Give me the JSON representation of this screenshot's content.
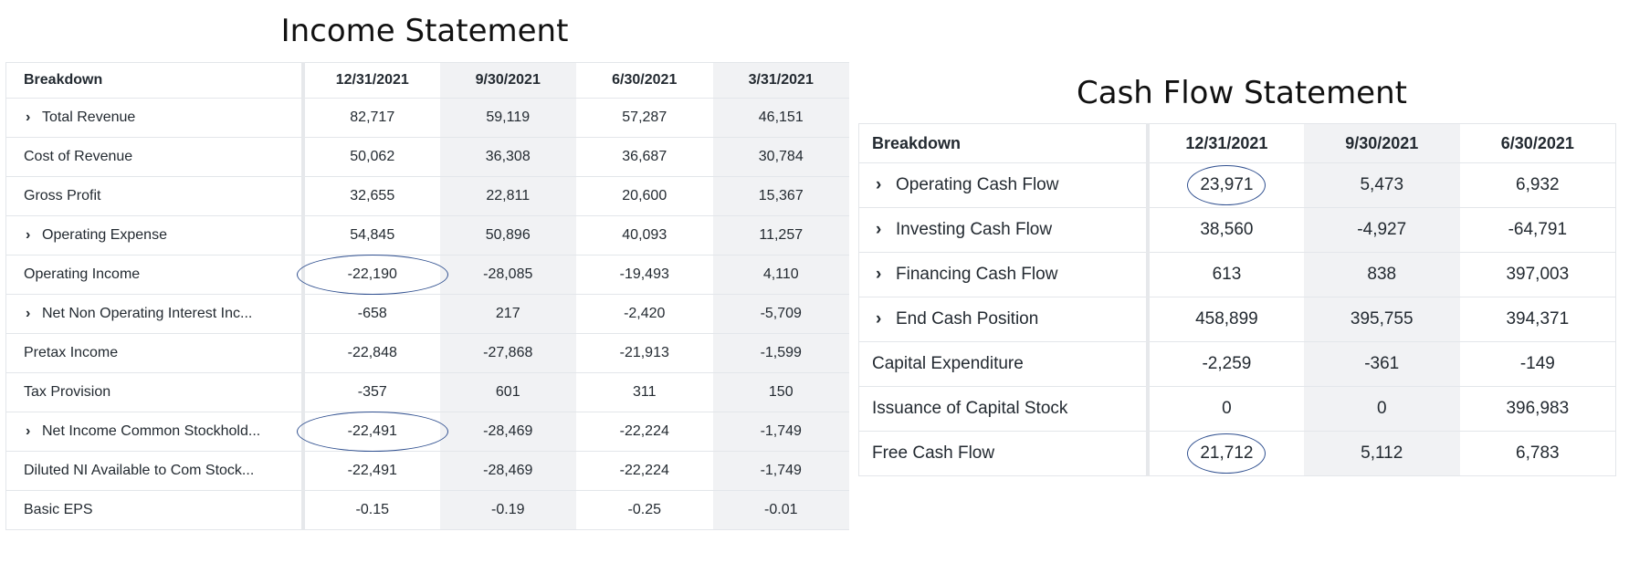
{
  "income": {
    "title": "Income Statement",
    "headers": [
      "Breakdown",
      "12/31/2021",
      "9/30/2021",
      "6/30/2021",
      "3/31/2021"
    ],
    "rows": [
      {
        "label": "Total Revenue",
        "expandable": true,
        "values": [
          "82,717",
          "59,119",
          "57,287",
          "46,151"
        ]
      },
      {
        "label": "Cost of Revenue",
        "expandable": false,
        "values": [
          "50,062",
          "36,308",
          "36,687",
          "30,784"
        ]
      },
      {
        "label": "Gross Profit",
        "expandable": false,
        "values": [
          "32,655",
          "22,811",
          "20,600",
          "15,367"
        ]
      },
      {
        "label": "Operating Expense",
        "expandable": true,
        "values": [
          "54,845",
          "50,896",
          "40,093",
          "11,257"
        ]
      },
      {
        "label": "Operating Income",
        "expandable": false,
        "values": [
          "-22,190",
          "-28,085",
          "-19,493",
          "4,110"
        ],
        "circled": 0
      },
      {
        "label": "Net Non Operating Interest Inc...",
        "expandable": true,
        "values": [
          "-658",
          "217",
          "-2,420",
          "-5,709"
        ]
      },
      {
        "label": "Pretax Income",
        "expandable": false,
        "values": [
          "-22,848",
          "-27,868",
          "-21,913",
          "-1,599"
        ]
      },
      {
        "label": "Tax Provision",
        "expandable": false,
        "values": [
          "-357",
          "601",
          "311",
          "150"
        ]
      },
      {
        "label": "Net Income Common Stockhold...",
        "expandable": true,
        "values": [
          "-22,491",
          "-28,469",
          "-22,224",
          "-1,749"
        ],
        "circled": 0
      },
      {
        "label": "Diluted NI Available to Com Stock...",
        "expandable": false,
        "values": [
          "-22,491",
          "-28,469",
          "-22,224",
          "-1,749"
        ]
      },
      {
        "label": "Basic EPS",
        "expandable": false,
        "values": [
          "-0.15",
          "-0.19",
          "-0.25",
          "-0.01"
        ]
      }
    ]
  },
  "cashflow": {
    "title": "Cash Flow Statement",
    "headers": [
      "Breakdown",
      "12/31/2021",
      "9/30/2021",
      "6/30/2021"
    ],
    "rows": [
      {
        "label": "Operating Cash Flow",
        "expandable": true,
        "values": [
          "23,971",
          "5,473",
          "6,932"
        ],
        "circled": 0
      },
      {
        "label": "Investing Cash Flow",
        "expandable": true,
        "values": [
          "38,560",
          "-4,927",
          "-64,791"
        ]
      },
      {
        "label": "Financing Cash Flow",
        "expandable": true,
        "values": [
          "613",
          "838",
          "397,003"
        ]
      },
      {
        "label": "End Cash Position",
        "expandable": true,
        "values": [
          "458,899",
          "395,755",
          "394,371"
        ]
      },
      {
        "label": "Capital Expenditure",
        "expandable": false,
        "values": [
          "-2,259",
          "-361",
          "-149"
        ]
      },
      {
        "label": "Issuance of Capital Stock",
        "expandable": false,
        "values": [
          "0",
          "0",
          "396,983"
        ]
      },
      {
        "label": "Free Cash Flow",
        "expandable": false,
        "values": [
          "21,712",
          "5,112",
          "6,783"
        ],
        "circled": 0
      }
    ]
  },
  "icons": {
    "expand": "chevron-right-icon",
    "highlight": "circle-annotation"
  },
  "colors": {
    "annotation": "#2f4f8f",
    "column_shade": "#f1f2f4",
    "grid": "#e3e6ea"
  }
}
